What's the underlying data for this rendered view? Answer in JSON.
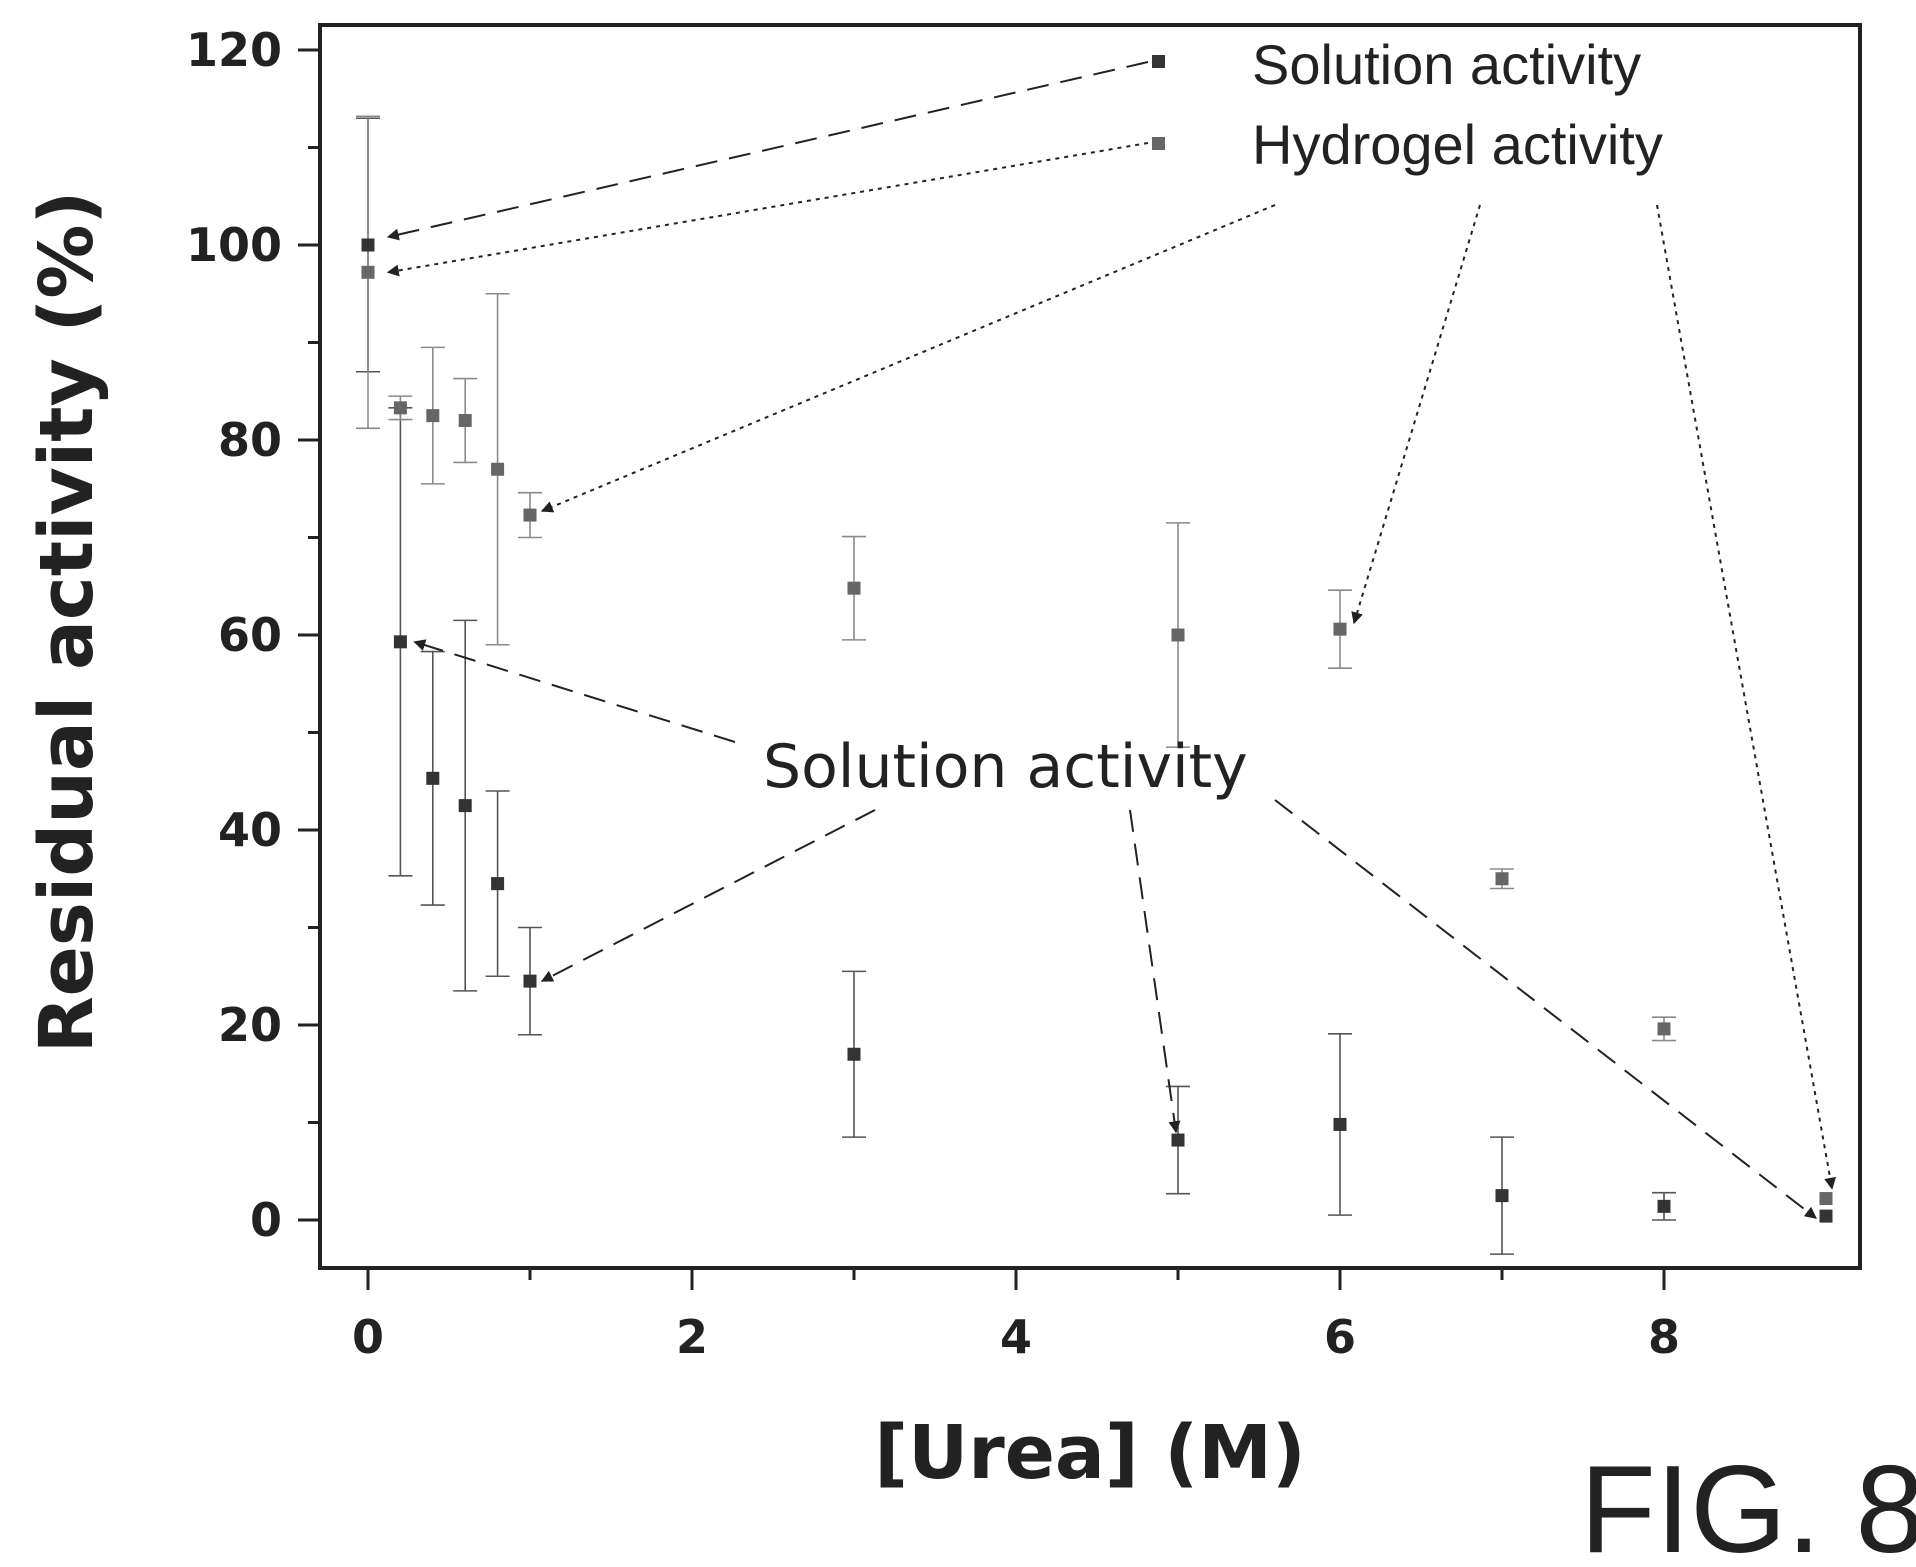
{
  "chart_data": {
    "type": "scatter",
    "xlabel": "[Urea] (M)",
    "ylabel": "Residual activity (%)",
    "xlim": [
      -0.3,
      9.2
    ],
    "ylim": [
      -5,
      122
    ],
    "xticks": [
      "0",
      "2",
      "4",
      "6",
      "8"
    ],
    "yticks": [
      "0",
      "20",
      "40",
      "60",
      "80",
      "100",
      "120"
    ],
    "grid": false,
    "legend_position": "top-right",
    "series": [
      {
        "name": "Solution activity",
        "color": "#333333",
        "points": [
          {
            "x": 0,
            "y": 100,
            "err": 13
          },
          {
            "x": 0.2,
            "y": 59.3,
            "err": 24
          },
          {
            "x": 0.4,
            "y": 45.3,
            "err": 13
          },
          {
            "x": 0.6,
            "y": 42.5,
            "err": 19
          },
          {
            "x": 0.8,
            "y": 34.5,
            "err": 9.5
          },
          {
            "x": 1,
            "y": 24.5,
            "err": 5.5
          },
          {
            "x": 3,
            "y": 17,
            "err": 8.5
          },
          {
            "x": 5,
            "y": 8.2,
            "err": 5.5
          },
          {
            "x": 6,
            "y": 9.8,
            "err": 9.3
          },
          {
            "x": 7,
            "y": 2.5,
            "err": 6
          },
          {
            "x": 8,
            "y": 1.4,
            "err": 1.4
          },
          {
            "x": 9,
            "y": 0.4,
            "err": 0
          }
        ]
      },
      {
        "name": "Hydrogel activity",
        "color": "#666666",
        "points": [
          {
            "x": 0,
            "y": 97.2,
            "err": 16
          },
          {
            "x": 0.2,
            "y": 83.3,
            "err": 1.2
          },
          {
            "x": 0.4,
            "y": 82.5,
            "err": 7
          },
          {
            "x": 0.6,
            "y": 82,
            "err": 4.3
          },
          {
            "x": 0.8,
            "y": 77,
            "err": 18
          },
          {
            "x": 1,
            "y": 72.3,
            "err": 2.3
          },
          {
            "x": 3,
            "y": 64.8,
            "err": 5.3
          },
          {
            "x": 5,
            "y": 60,
            "err": 11.5
          },
          {
            "x": 6,
            "y": 60.6,
            "err": 4
          },
          {
            "x": 7,
            "y": 35,
            "err": 1
          },
          {
            "x": 8,
            "y": 19.6,
            "err": 1.2
          },
          {
            "x": 9,
            "y": 2.2,
            "err": 0
          }
        ]
      }
    ],
    "annotations": [
      {
        "text": "Solution activity"
      }
    ]
  },
  "figure_label": "FIG. 8"
}
